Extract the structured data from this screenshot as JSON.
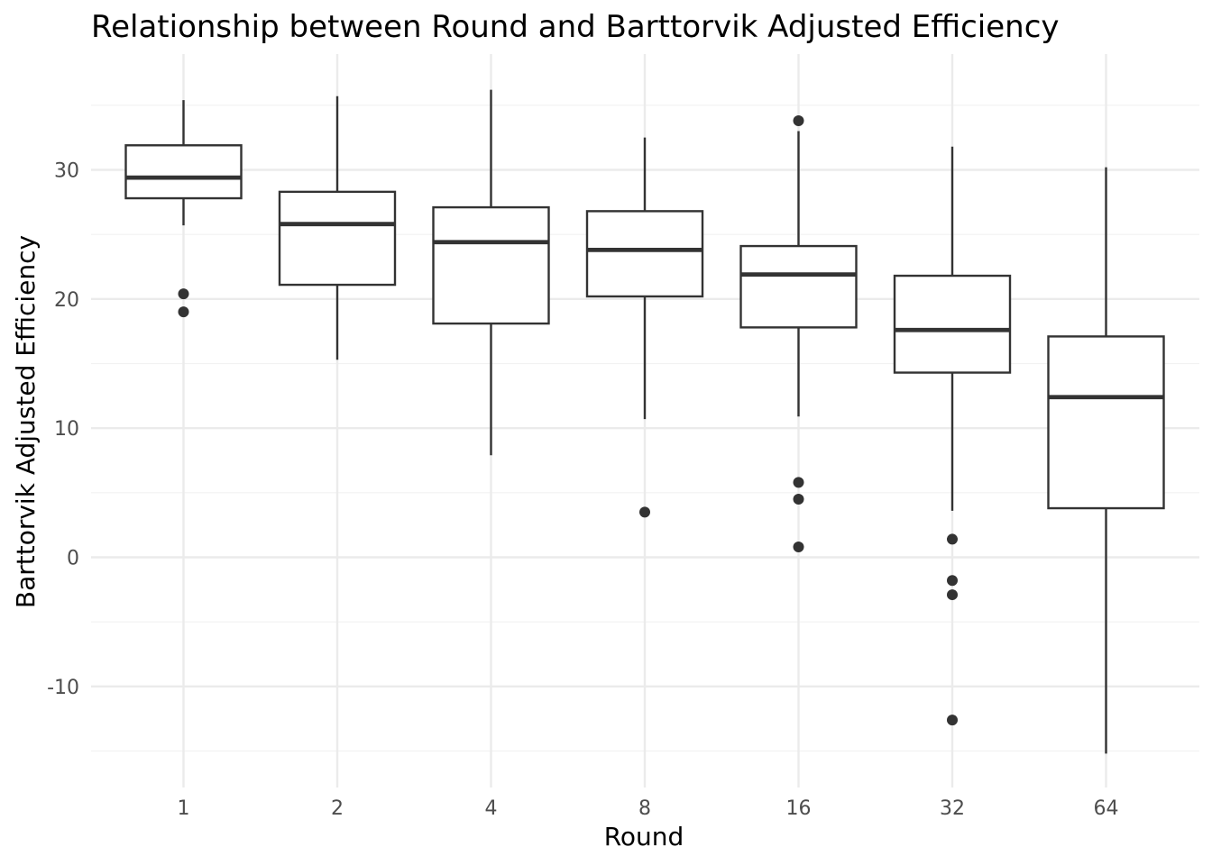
{
  "chart_data": {
    "type": "boxplot",
    "title": "Relationship between Round and Barttorvik Adjusted Efficiency",
    "xlabel": "Round",
    "ylabel": "Barttorvik Adjusted Efficiency",
    "categories": [
      "1",
      "2",
      "4",
      "8",
      "16",
      "32",
      "64"
    ],
    "ylim": [
      -17.3,
      38.9
    ],
    "yticks": [
      -10,
      0,
      10,
      20,
      30
    ],
    "ytick_labels": [
      "-10",
      "0",
      "10",
      "20",
      "30"
    ],
    "grid": true,
    "legend": "none",
    "boxes": [
      {
        "category": "1",
        "whisker_low": 25.7,
        "q1": 27.8,
        "median": 29.4,
        "q3": 31.9,
        "whisker_high": 35.4,
        "outliers": [
          20.4,
          19.0
        ]
      },
      {
        "category": "2",
        "whisker_low": 15.3,
        "q1": 21.1,
        "median": 25.8,
        "q3": 28.3,
        "whisker_high": 35.7,
        "outliers": []
      },
      {
        "category": "4",
        "whisker_low": 7.9,
        "q1": 18.1,
        "median": 24.4,
        "q3": 27.1,
        "whisker_high": 36.2,
        "outliers": []
      },
      {
        "category": "8",
        "whisker_low": 10.7,
        "q1": 20.2,
        "median": 23.8,
        "q3": 26.8,
        "whisker_high": 32.5,
        "outliers": [
          3.5
        ]
      },
      {
        "category": "16",
        "whisker_low": 10.9,
        "q1": 17.8,
        "median": 21.9,
        "q3": 24.1,
        "whisker_high": 33.0,
        "outliers": [
          33.8,
          5.8,
          4.5,
          0.8
        ]
      },
      {
        "category": "32",
        "whisker_low": 3.6,
        "q1": 14.3,
        "median": 17.6,
        "q3": 21.8,
        "whisker_high": 31.8,
        "outliers": [
          1.4,
          -1.8,
          -2.9,
          -12.6
        ]
      },
      {
        "category": "64",
        "whisker_low": -15.2,
        "q1": 3.8,
        "median": 12.4,
        "q3": 17.1,
        "whisker_high": 30.2,
        "outliers": []
      }
    ],
    "colors": {
      "box_stroke": "#333333",
      "box_fill": "#ffffff",
      "point": "#333333",
      "grid_major": "#ebebeb",
      "grid_minor": "#f2f2f2",
      "tick_text": "#4d4d4d",
      "title_text": "#000000"
    }
  }
}
